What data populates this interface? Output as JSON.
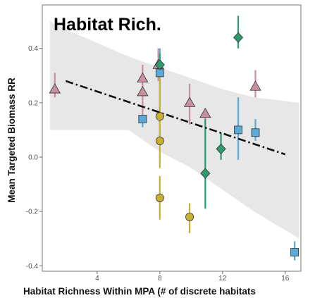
{
  "chart_data": {
    "type": "scatter",
    "title": "Habitat Rich.",
    "xlabel": "Habitat Richness Within MPA (# of discrete habitats",
    "ylabel": "Mean Targeted Biomass RR",
    "xlim": [
      0.5,
      17
    ],
    "ylim": [
      -0.42,
      0.56
    ],
    "xticks": [
      4,
      8,
      12,
      16
    ],
    "yticks": [
      -0.4,
      -0.2,
      0.0,
      0.2,
      0.4
    ],
    "ytick_labels": [
      "-0.4",
      "-0.2",
      "0.0",
      "0.2",
      "0.4"
    ],
    "grid": false,
    "trend": {
      "x": [
        2,
        16
      ],
      "y": [
        0.28,
        0.01
      ],
      "style": "dash-dot"
    },
    "confidence_band": {
      "x": [
        1,
        2,
        4,
        6,
        8,
        10,
        12,
        14,
        16.9
      ],
      "upper": [
        0.5,
        0.47,
        0.42,
        0.37,
        0.33,
        0.29,
        0.25,
        0.22,
        0.2
      ],
      "lower": [
        0.1,
        0.1,
        0.1,
        0.1,
        0.02,
        -0.04,
        -0.12,
        -0.2,
        -0.3
      ]
    },
    "series": [
      {
        "marker": "triangle",
        "color": "#C9909F",
        "points": [
          {
            "x": 1.3,
            "y": 0.25,
            "lo": 0.22,
            "hi": 0.31
          },
          {
            "x": 6.9,
            "y": 0.29,
            "lo": 0.24,
            "hi": 0.34
          },
          {
            "x": 6.9,
            "y": 0.24,
            "lo": 0.16,
            "hi": 0.33
          },
          {
            "x": 7.9,
            "y": 0.34,
            "lo": 0.28,
            "hi": 0.4
          },
          {
            "x": 9.9,
            "y": 0.2,
            "lo": 0.12,
            "hi": 0.27
          },
          {
            "x": 10.9,
            "y": 0.16,
            "lo": 0.12,
            "hi": 0.18
          },
          {
            "x": 14.1,
            "y": 0.26,
            "lo": 0.22,
            "hi": 0.32
          }
        ]
      },
      {
        "marker": "square",
        "color": "#5AA9D8",
        "points": [
          {
            "x": 6.9,
            "y": 0.14,
            "lo": 0.11,
            "hi": 0.16
          },
          {
            "x": 8.0,
            "y": 0.31,
            "lo": 0.05,
            "hi": 0.4
          },
          {
            "x": 13.0,
            "y": 0.1,
            "lo": -0.01,
            "hi": 0.22
          },
          {
            "x": 14.1,
            "y": 0.09,
            "lo": 0.06,
            "hi": 0.14
          },
          {
            "x": 16.6,
            "y": -0.35,
            "lo": -0.38,
            "hi": -0.31
          }
        ]
      },
      {
        "marker": "diamond",
        "color": "#2E9B6E",
        "points": [
          {
            "x": 8.0,
            "y": 0.34,
            "lo": 0.3,
            "hi": 0.38
          },
          {
            "x": 11.9,
            "y": 0.03,
            "lo": -0.01,
            "hi": 0.09
          },
          {
            "x": 13.0,
            "y": 0.44,
            "lo": 0.4,
            "hi": 0.52
          },
          {
            "x": 10.9,
            "y": -0.06,
            "lo": -0.19,
            "hi": 0.14
          }
        ]
      },
      {
        "marker": "circle",
        "color": "#C9B032",
        "points": [
          {
            "x": 8.0,
            "y": 0.15,
            "lo": 0.1,
            "hi": 0.35
          },
          {
            "x": 8.0,
            "y": 0.06,
            "lo": -0.04,
            "hi": 0.16
          },
          {
            "x": 8.0,
            "y": -0.15,
            "lo": -0.23,
            "hi": -0.07
          },
          {
            "x": 9.9,
            "y": -0.22,
            "lo": -0.28,
            "hi": -0.17
          }
        ]
      }
    ]
  }
}
